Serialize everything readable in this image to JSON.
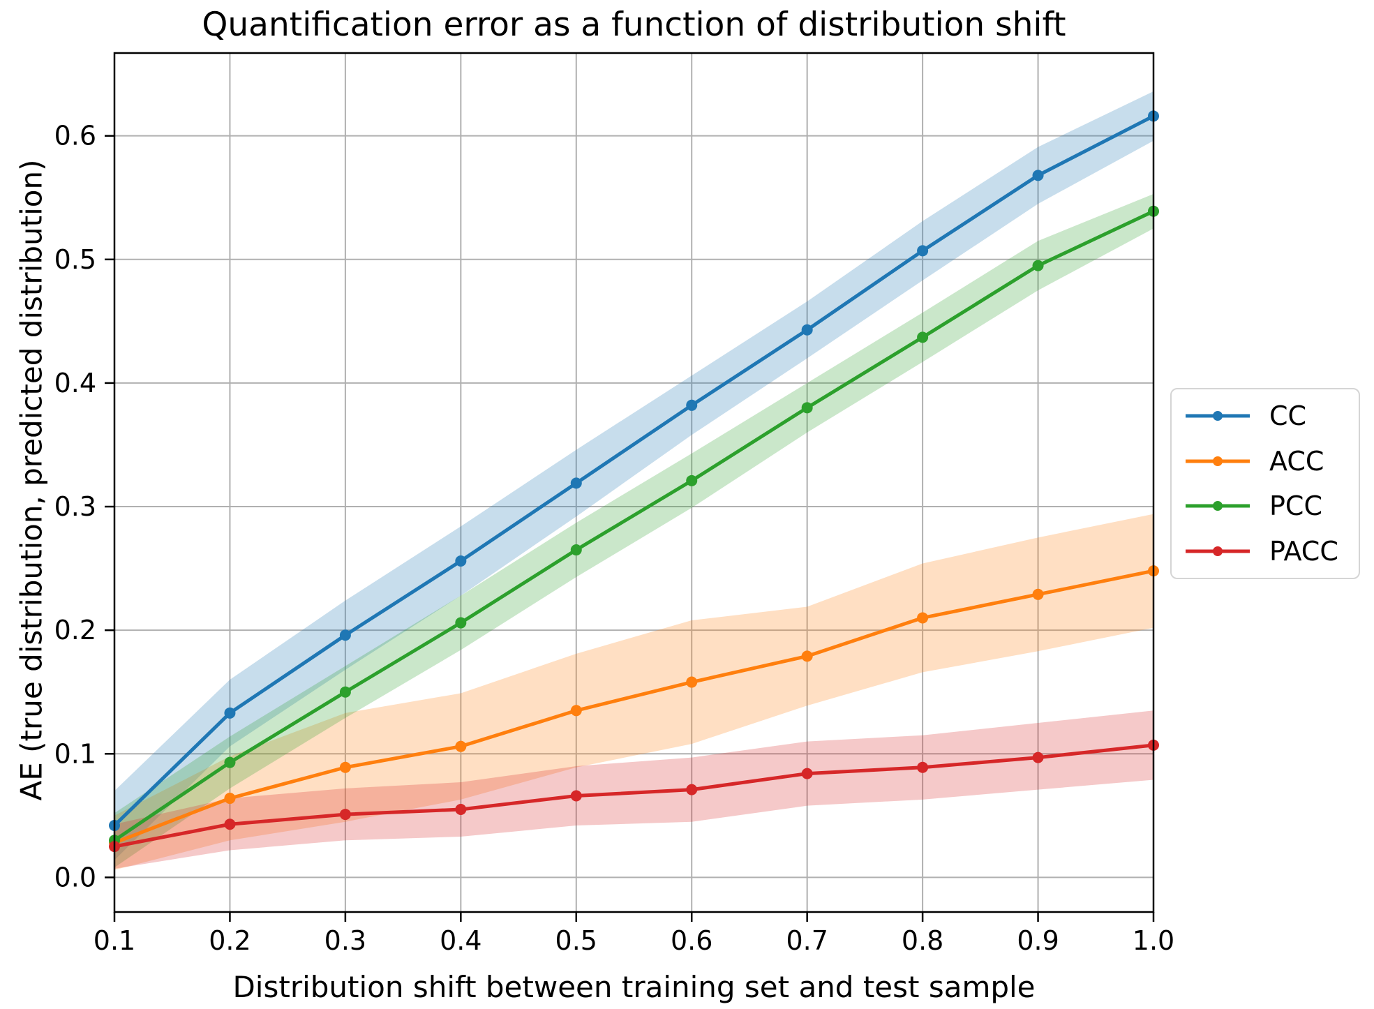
{
  "chart_data": {
    "type": "line",
    "title": "Quantification error as a function of distribution shift",
    "xlabel": "Distribution shift between training set and test sample",
    "ylabel": "AE (true distribution, predicted distribution)",
    "xlim": [
      0.1,
      1.0
    ],
    "ylim": [
      -0.028,
      0.667
    ],
    "grid": true,
    "legend_position": "right of axes, vertically centered",
    "grid_color": "#b0b0b0",
    "axis_color": "#000000",
    "band_opacity": 0.25,
    "x": [
      0.1,
      0.2,
      0.3,
      0.4,
      0.5,
      0.6,
      0.7,
      0.8,
      0.9,
      1.0
    ],
    "xtick_labels": [
      "0.1",
      "0.2",
      "0.3",
      "0.4",
      "0.5",
      "0.6",
      "0.7",
      "0.8",
      "0.9",
      "1.0"
    ],
    "ytick_values": [
      0.0,
      0.1,
      0.2,
      0.3,
      0.4,
      0.5,
      0.6
    ],
    "ytick_labels": [
      "0.0",
      "0.1",
      "0.2",
      "0.3",
      "0.4",
      "0.5",
      "0.6"
    ],
    "series": [
      {
        "name": "CC",
        "color": "#1f77b4",
        "values": [
          0.042,
          0.133,
          0.196,
          0.256,
          0.319,
          0.382,
          0.443,
          0.507,
          0.568,
          0.616
        ],
        "band_lower": [
          0.014,
          0.106,
          0.168,
          0.228,
          0.292,
          0.358,
          0.42,
          0.483,
          0.545,
          0.596
        ],
        "band_upper": [
          0.07,
          0.16,
          0.224,
          0.284,
          0.346,
          0.406,
          0.466,
          0.531,
          0.591,
          0.636
        ]
      },
      {
        "name": "ACC",
        "color": "#ff7f0e",
        "values": [
          0.028,
          0.064,
          0.089,
          0.106,
          0.135,
          0.158,
          0.179,
          0.21,
          0.229,
          0.248
        ],
        "band_lower": [
          0.006,
          0.03,
          0.045,
          0.063,
          0.089,
          0.108,
          0.139,
          0.166,
          0.183,
          0.202
        ],
        "band_upper": [
          0.05,
          0.098,
          0.133,
          0.149,
          0.181,
          0.208,
          0.219,
          0.254,
          0.275,
          0.294
        ]
      },
      {
        "name": "PCC",
        "color": "#2ca02c",
        "values": [
          0.03,
          0.093,
          0.15,
          0.206,
          0.265,
          0.321,
          0.38,
          0.437,
          0.495,
          0.539
        ],
        "band_lower": [
          0.008,
          0.072,
          0.129,
          0.184,
          0.243,
          0.299,
          0.36,
          0.417,
          0.475,
          0.525
        ],
        "band_upper": [
          0.052,
          0.114,
          0.171,
          0.228,
          0.287,
          0.343,
          0.4,
          0.457,
          0.515,
          0.553
        ]
      },
      {
        "name": "PACC",
        "color": "#d62728",
        "values": [
          0.025,
          0.043,
          0.051,
          0.055,
          0.066,
          0.071,
          0.084,
          0.089,
          0.097,
          0.107
        ],
        "band_lower": [
          0.007,
          0.022,
          0.03,
          0.033,
          0.042,
          0.045,
          0.058,
          0.063,
          0.071,
          0.079
        ],
        "band_upper": [
          0.043,
          0.064,
          0.072,
          0.077,
          0.09,
          0.097,
          0.11,
          0.115,
          0.125,
          0.135
        ]
      }
    ]
  }
}
